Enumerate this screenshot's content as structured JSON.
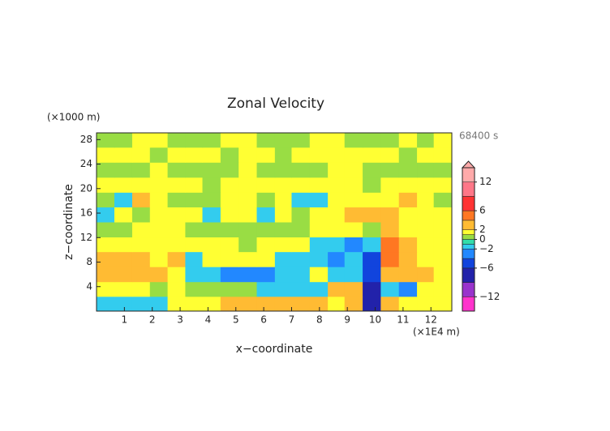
{
  "chart_data": {
    "type": "contour",
    "title": "Zonal Velocity",
    "y_unit": "(×1000 m)",
    "x_unit": "(×1E4 m)",
    "time_label": "68400 s",
    "xlabel": "x−coordinate",
    "ylabel": "z−coordinate",
    "xlim": [
      0,
      12.75
    ],
    "ylim": [
      0,
      29.1
    ],
    "xticks": [
      1,
      2,
      3,
      4,
      5,
      6,
      7,
      8,
      9,
      10,
      11,
      12
    ],
    "yticks": [
      4,
      8,
      12,
      16,
      20,
      24,
      28
    ],
    "x": [
      0.32,
      0.96,
      1.6,
      2.23,
      2.87,
      3.5,
      4.1,
      4.8,
      5.4,
      6.1,
      6.7,
      7.3,
      8.0,
      8.6,
      9.2,
      9.9,
      10.5,
      11.2,
      11.8,
      12.4
    ],
    "y": [
      1.2,
      3.6,
      6.0,
      8.5,
      10.9,
      13.3,
      15.8,
      18.2,
      20.6,
      23.1,
      25.5,
      28.0
    ],
    "z": [
      [
        -1.5,
        -1.5,
        -1.5,
        -1.5,
        1.5,
        1.5,
        1.5,
        3,
        3,
        3,
        3,
        3,
        3,
        1.5,
        3,
        -7,
        3,
        1.5,
        1.5,
        1.5
      ],
      [
        1.5,
        1.5,
        1.5,
        0.5,
        1.5,
        0.5,
        0.5,
        0.5,
        0.5,
        -1.5,
        -1.5,
        -1.5,
        -1.5,
        3,
        3,
        -7,
        -1.5,
        -3,
        1.5,
        1.5
      ],
      [
        3,
        3,
        3,
        3,
        1.5,
        -1.5,
        -1.5,
        -3,
        -3,
        -3,
        -1.5,
        -1.5,
        1.5,
        -1.5,
        -1.5,
        -5,
        3,
        3,
        3,
        1.5
      ],
      [
        3,
        3,
        3,
        1.5,
        3,
        -1.5,
        1.5,
        1.5,
        1.5,
        1.5,
        -1.5,
        -1.5,
        -1.5,
        -3,
        -1.5,
        -5,
        5,
        3,
        1.5,
        1.5
      ],
      [
        1.5,
        1.5,
        1.5,
        1.5,
        1.5,
        1.5,
        1.5,
        1.5,
        0.5,
        1.5,
        1.5,
        1.5,
        -1.5,
        -1.5,
        -3,
        -1.5,
        5,
        3,
        1.5,
        1.5
      ],
      [
        0.5,
        0.5,
        1.5,
        1.5,
        1.5,
        0.5,
        0.5,
        0.5,
        0.5,
        0.5,
        0.5,
        0.5,
        1.5,
        1.5,
        1.5,
        0.5,
        3,
        1.5,
        1.5,
        1.5
      ],
      [
        -1.5,
        1.5,
        0.5,
        1.5,
        1.5,
        1.5,
        -1.5,
        1.5,
        1.5,
        -1.5,
        1.5,
        0.5,
        1.5,
        1.5,
        3,
        3,
        3,
        1.5,
        1.5,
        1.5
      ],
      [
        0.5,
        -1.5,
        3,
        1.5,
        0.5,
        0.5,
        0.5,
        1.5,
        1.5,
        0.5,
        1.5,
        -1.5,
        -1.5,
        1.5,
        1.5,
        1.5,
        1.5,
        3,
        1.5,
        0.5
      ],
      [
        1.5,
        1.5,
        1.5,
        1.5,
        1.5,
        1.5,
        0.5,
        1.5,
        1.5,
        1.5,
        1.5,
        1.5,
        1.5,
        1.5,
        1.5,
        0.5,
        1.5,
        1.5,
        1.5,
        1.5
      ],
      [
        0.5,
        0.5,
        0.5,
        1.5,
        0.5,
        0.5,
        0.5,
        0.5,
        1.5,
        0.5,
        0.5,
        0.5,
        0.5,
        1.5,
        1.5,
        0.5,
        0.5,
        0.5,
        0.5,
        0.5
      ],
      [
        1.5,
        1.5,
        1.5,
        0.5,
        1.5,
        1.5,
        1.5,
        0.5,
        1.5,
        1.5,
        0.5,
        1.5,
        1.5,
        1.5,
        1.5,
        1.5,
        1.5,
        0.5,
        1.5,
        1.5
      ],
      [
        0.5,
        0.5,
        1.5,
        1.5,
        0.5,
        0.5,
        0.5,
        1.5,
        1.5,
        0.5,
        0.5,
        0.5,
        1.5,
        1.5,
        0.5,
        0.5,
        0.5,
        1.5,
        0.5,
        1.5
      ]
    ],
    "colorbar": {
      "levels": [
        -15,
        -12,
        -9,
        -6,
        -4,
        -2,
        -1,
        0,
        1,
        2,
        4,
        6,
        9,
        12,
        15
      ],
      "colors": [
        "#ff33cc",
        "#9933cc",
        "#2222aa",
        "#1144dd",
        "#2288ff",
        "#33ccee",
        "#33ddaa",
        "#99dd44",
        "#ffff33",
        "#ffbb33",
        "#ff7722",
        "#ff3333",
        "#ff7788",
        "#ffaaaa"
      ],
      "ticks": [
        12,
        6,
        2,
        0,
        {
          "value": -2,
          "label": "−2"
        },
        {
          "value": -6,
          "label": "−6"
        },
        {
          "value": -12,
          "label": "−12"
        }
      ]
    }
  }
}
